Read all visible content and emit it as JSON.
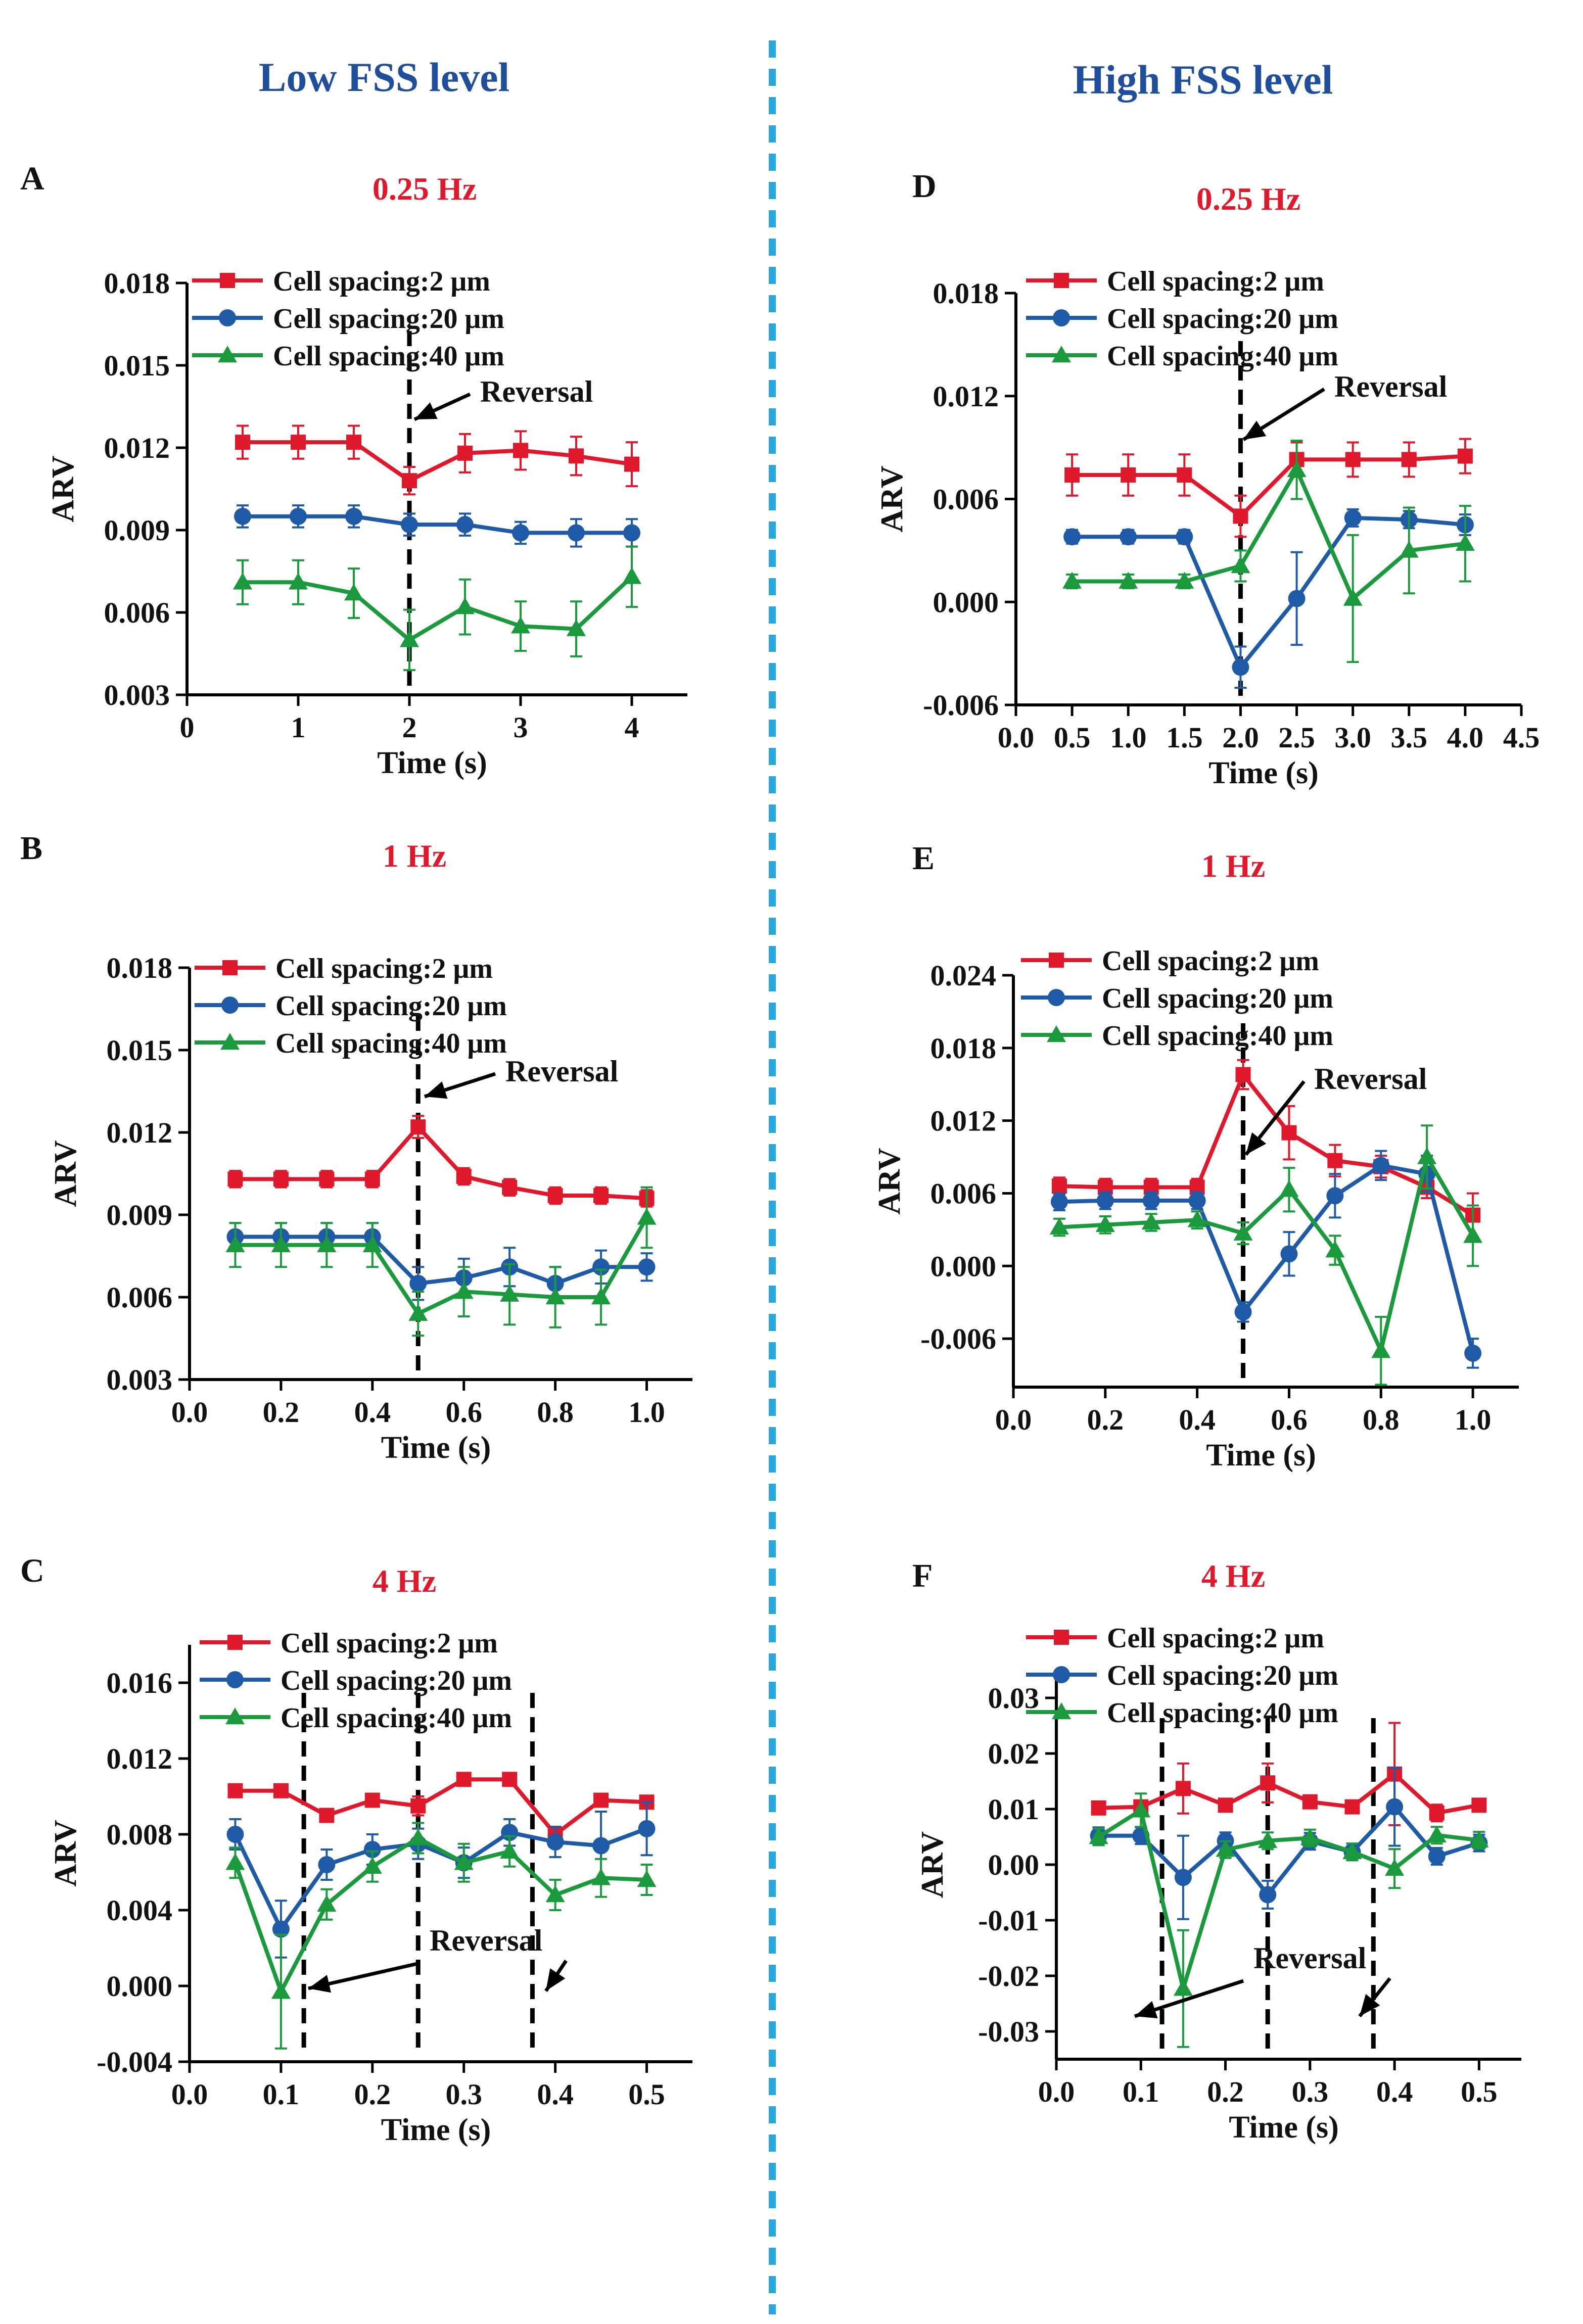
{
  "columns": {
    "left_title": "Low FSS level",
    "right_title": "High FSS level"
  },
  "colors": {
    "title_blue": "#1f4e9c",
    "freq_red": "#e0182c",
    "divider": "#29a8e0",
    "s2": "#e0182c",
    "s20": "#1f5aa6",
    "s40": "#1a9a3c"
  },
  "chart_data": [
    {
      "id": "A",
      "letter": "A",
      "type": "line",
      "title": "0.25 Hz",
      "xlabel": "Time (s)",
      "ylabel": "ARV",
      "xlim": [
        0,
        4.5
      ],
      "xticks": [
        0,
        1,
        2,
        3,
        4
      ],
      "xtick_labels": [
        "0",
        "1",
        "2",
        "3",
        "4"
      ],
      "ylim": [
        0.003,
        0.018
      ],
      "yticks": [
        0.003,
        0.006,
        0.009,
        0.012,
        0.015,
        0.018
      ],
      "ytick_labels": [
        "0.003",
        "0.006",
        "0.009",
        "0.012",
        "0.015",
        "0.018"
      ],
      "x": [
        0.5,
        1.0,
        1.5,
        2.0,
        2.5,
        3.0,
        3.5,
        4.0
      ],
      "series": [
        {
          "name": "Cell spacing:2 μm",
          "marker": "square",
          "values": [
            0.0122,
            0.0122,
            0.0122,
            0.0108,
            0.0118,
            0.0119,
            0.0117,
            0.0114
          ],
          "errors": [
            0.0006,
            0.0006,
            0.0006,
            0.0005,
            0.0007,
            0.0007,
            0.0007,
            0.0008
          ]
        },
        {
          "name": "Cell spacing:20 μm",
          "marker": "circle",
          "values": [
            0.0095,
            0.0095,
            0.0095,
            0.0092,
            0.0092,
            0.0089,
            0.0089,
            0.0089
          ],
          "errors": [
            0.0004,
            0.0004,
            0.0004,
            0.0004,
            0.0004,
            0.0004,
            0.0005,
            0.0005
          ]
        },
        {
          "name": "Cell spacing:40 μm",
          "marker": "triangle",
          "values": [
            0.0071,
            0.0071,
            0.0067,
            0.005,
            0.0062,
            0.0055,
            0.0054,
            0.0073
          ],
          "errors": [
            0.0008,
            0.0008,
            0.0009,
            0.0011,
            0.001,
            0.0009,
            0.001,
            0.0011
          ]
        }
      ],
      "reversal_lines": [
        2.0
      ],
      "reversal_label": "Reversal"
    },
    {
      "id": "B",
      "letter": "B",
      "type": "line",
      "title": "1  Hz",
      "xlabel": "Time (s)",
      "ylabel": "ARV",
      "xlim": [
        0,
        1.1
      ],
      "xticks": [
        0,
        0.2,
        0.4,
        0.6,
        0.8,
        1.0
      ],
      "xtick_labels": [
        "0.0",
        "0.2",
        "0.4",
        "0.6",
        "0.8",
        "1.0"
      ],
      "ylim": [
        0.003,
        0.018
      ],
      "yticks": [
        0.003,
        0.006,
        0.009,
        0.012,
        0.015,
        0.018
      ],
      "ytick_labels": [
        "0.003",
        "0.006",
        "0.009",
        "0.012",
        "0.015",
        "0.018"
      ],
      "x": [
        0.1,
        0.2,
        0.3,
        0.4,
        0.5,
        0.6,
        0.7,
        0.8,
        0.9,
        1.0
      ],
      "series": [
        {
          "name": "Cell spacing:2 μm",
          "marker": "square",
          "values": [
            0.0103,
            0.0103,
            0.0103,
            0.0103,
            0.0122,
            0.0104,
            0.01,
            0.0097,
            0.0097,
            0.0096
          ],
          "errors": [
            0.0003,
            0.0003,
            0.0003,
            0.0003,
            0.0004,
            0.0003,
            0.0003,
            0.0003,
            0.0003,
            0.0003
          ]
        },
        {
          "name": "Cell spacing:20 μm",
          "marker": "circle",
          "values": [
            0.0082,
            0.0082,
            0.0082,
            0.0082,
            0.0065,
            0.0067,
            0.0071,
            0.0065,
            0.0071,
            0.0071
          ],
          "errors": [
            0.0005,
            0.0005,
            0.0005,
            0.0005,
            0.0006,
            0.0007,
            0.0007,
            0.0006,
            0.0006,
            0.0005
          ]
        },
        {
          "name": "Cell spacing:40 μm",
          "marker": "triangle",
          "values": [
            0.0079,
            0.0079,
            0.0079,
            0.0079,
            0.0054,
            0.0062,
            0.0061,
            0.006,
            0.006,
            0.0089
          ],
          "errors": [
            0.0008,
            0.0008,
            0.0008,
            0.0008,
            0.0008,
            0.0009,
            0.0011,
            0.0011,
            0.001,
            0.0011
          ]
        }
      ],
      "reversal_lines": [
        0.5
      ],
      "reversal_label": "Reversal"
    },
    {
      "id": "C",
      "letter": "C",
      "type": "line",
      "title": "4 Hz",
      "xlabel": "Time (s)",
      "ylabel": "ARV",
      "xlim": [
        0,
        0.55
      ],
      "xticks": [
        0,
        0.1,
        0.2,
        0.3,
        0.4,
        0.5
      ],
      "xtick_labels": [
        "0.0",
        "0.1",
        "0.2",
        "0.3",
        "0.4",
        "0.5"
      ],
      "ylim": [
        -0.004,
        0.018
      ],
      "yticks": [
        -0.004,
        0.0,
        0.004,
        0.008,
        0.012,
        0.016
      ],
      "ytick_labels": [
        "-0.004",
        "0.000",
        "0.004",
        "0.008",
        "0.012",
        "0.016"
      ],
      "x": [
        0.05,
        0.1,
        0.15,
        0.2,
        0.25,
        0.3,
        0.35,
        0.4,
        0.45,
        0.5
      ],
      "series": [
        {
          "name": "Cell spacing:2 μm",
          "marker": "square",
          "values": [
            0.0103,
            0.0103,
            0.009,
            0.0098,
            0.0095,
            0.0109,
            0.0109,
            0.008,
            0.0098,
            0.0097
          ],
          "errors": [
            0.0003,
            0.0003,
            0.0003,
            0.0003,
            0.0005,
            0.0003,
            0.0003,
            0.0004,
            0.0003,
            0.0003
          ]
        },
        {
          "name": "Cell spacing:20 μm",
          "marker": "circle",
          "values": [
            0.008,
            0.003,
            0.0064,
            0.0072,
            0.0075,
            0.0065,
            0.0081,
            0.0076,
            0.0074,
            0.0083
          ],
          "errors": [
            0.0008,
            0.0015,
            0.0008,
            0.0008,
            0.0008,
            0.0008,
            0.0007,
            0.0008,
            0.0018,
            0.0014
          ]
        },
        {
          "name": "Cell spacing:40 μm",
          "marker": "triangle",
          "values": [
            0.0065,
            -0.0003,
            0.0043,
            0.0063,
            0.0078,
            0.0065,
            0.0071,
            0.0048,
            0.0057,
            0.0056
          ],
          "errors": [
            0.0008,
            0.003,
            0.0008,
            0.0008,
            0.0008,
            0.001,
            0.0008,
            0.0008,
            0.001,
            0.0008
          ]
        }
      ],
      "reversal_lines": [
        0.125,
        0.25,
        0.375
      ],
      "reversal_label": "Reversal"
    },
    {
      "id": "D",
      "letter": "D",
      "type": "line",
      "title": "0.25 Hz",
      "xlabel": "Time (s)",
      "ylabel": "ARV",
      "xlim": [
        0,
        4.5
      ],
      "xticks": [
        0,
        0.5,
        1.0,
        1.5,
        2.0,
        2.5,
        3.0,
        3.5,
        4.0,
        4.5
      ],
      "xtick_labels": [
        "0.0",
        "0.5",
        "1.0",
        "1.5",
        "2.0",
        "2.5",
        "3.0",
        "3.5",
        "4.0",
        "4.5"
      ],
      "ylim": [
        -0.006,
        0.018
      ],
      "yticks": [
        -0.006,
        0.0,
        0.006,
        0.012,
        0.018
      ],
      "ytick_labels": [
        "-0.006",
        "0.000",
        "0.006",
        "0.012",
        "0.018"
      ],
      "x": [
        0.5,
        1.0,
        1.5,
        2.0,
        2.5,
        3.0,
        3.5,
        4.0
      ],
      "series": [
        {
          "name": "Cell spacing:2 μm",
          "marker": "square",
          "values": [
            0.0074,
            0.0074,
            0.0074,
            0.005,
            0.0083,
            0.0083,
            0.0083,
            0.0085
          ],
          "errors": [
            0.0012,
            0.0012,
            0.0012,
            0.0012,
            0.001,
            0.001,
            0.001,
            0.001
          ]
        },
        {
          "name": "Cell spacing:20 μm",
          "marker": "circle",
          "values": [
            0.0038,
            0.0038,
            0.0038,
            -0.0038,
            0.0002,
            0.0049,
            0.0048,
            0.0045
          ],
          "errors": [
            0.0004,
            0.0004,
            0.0004,
            0.0012,
            0.0027,
            0.0005,
            0.0005,
            0.0006
          ]
        },
        {
          "name": "Cell spacing:40 μm",
          "marker": "triangle",
          "values": [
            0.0012,
            0.0012,
            0.0012,
            0.0021,
            0.0077,
            0.0002,
            0.003,
            0.0034
          ],
          "errors": [
            0.0004,
            0.0004,
            0.0004,
            0.0009,
            0.0017,
            0.0037,
            0.0025,
            0.0022
          ]
        }
      ],
      "reversal_lines": [
        2.0
      ],
      "reversal_label": "Reversal"
    },
    {
      "id": "E",
      "letter": "E",
      "type": "line",
      "title": "1  Hz",
      "xlabel": "Time (s)",
      "ylabel": "ARV",
      "xlim": [
        0,
        1.1
      ],
      "xticks": [
        0,
        0.2,
        0.4,
        0.6,
        0.8,
        1.0
      ],
      "xtick_labels": [
        "0.0",
        "0.2",
        "0.4",
        "0.6",
        "0.8",
        "1.0"
      ],
      "ylim": [
        -0.01,
        0.024
      ],
      "yticks": [
        -0.006,
        0.0,
        0.006,
        0.012,
        0.018,
        0.024
      ],
      "ytick_labels": [
        "-0.006",
        "0.000",
        "0.006",
        "0.012",
        "0.018",
        "0.024"
      ],
      "x": [
        0.1,
        0.2,
        0.3,
        0.4,
        0.5,
        0.6,
        0.7,
        0.8,
        0.9,
        1.0
      ],
      "series": [
        {
          "name": "Cell spacing:2 μm",
          "marker": "square",
          "values": [
            0.0066,
            0.0065,
            0.0065,
            0.0065,
            0.0158,
            0.011,
            0.0087,
            0.0082,
            0.0065,
            0.0042
          ],
          "errors": [
            0.0007,
            0.0007,
            0.0007,
            0.0007,
            0.0012,
            0.0022,
            0.0013,
            0.0009,
            0.0009,
            0.0018
          ]
        },
        {
          "name": "Cell spacing:20 μm",
          "marker": "circle",
          "values": [
            0.0053,
            0.0054,
            0.0054,
            0.0054,
            -0.0038,
            0.001,
            0.0058,
            0.0083,
            0.0076,
            -0.0072
          ],
          "errors": [
            0.0007,
            0.0007,
            0.0007,
            0.0007,
            0.0008,
            0.0018,
            0.0018,
            0.0012,
            0.0015,
            0.0012
          ]
        },
        {
          "name": "Cell spacing:40 μm",
          "marker": "triangle",
          "values": [
            0.0032,
            0.0034,
            0.0036,
            0.0038,
            0.0027,
            0.0063,
            0.0013,
            -0.007,
            0.009,
            0.0025
          ],
          "errors": [
            0.0007,
            0.0007,
            0.0007,
            0.0007,
            0.0009,
            0.0018,
            0.0012,
            0.0028,
            0.0026,
            0.0025
          ]
        }
      ],
      "reversal_lines": [
        0.5
      ],
      "reversal_label": "Reversal"
    },
    {
      "id": "F",
      "letter": "F",
      "type": "line",
      "title": "4 Hz",
      "xlabel": "Time (s)",
      "ylabel": "ARV",
      "xlim": [
        0,
        0.55
      ],
      "xticks": [
        0,
        0.1,
        0.2,
        0.3,
        0.4,
        0.5
      ],
      "xtick_labels": [
        "0.0",
        "0.1",
        "0.2",
        "0.3",
        "0.4",
        "0.5"
      ],
      "ylim": [
        -0.035,
        0.035
      ],
      "yticks": [
        -0.03,
        -0.02,
        -0.01,
        0.0,
        0.01,
        0.02,
        0.03
      ],
      "ytick_labels": [
        "-0.03",
        "-0.02",
        "-0.01",
        "0.00",
        "0.01",
        "0.02",
        "0.03"
      ],
      "x": [
        0.05,
        0.1,
        0.15,
        0.2,
        0.25,
        0.3,
        0.35,
        0.4,
        0.45,
        0.5
      ],
      "series": [
        {
          "name": "Cell spacing:2 μm",
          "marker": "square",
          "values": [
            0.0102,
            0.0104,
            0.0137,
            0.0107,
            0.0147,
            0.0113,
            0.0104,
            0.0163,
            0.0093,
            0.0107
          ],
          "errors": [
            0.001,
            0.001,
            0.0045,
            0.001,
            0.0035,
            0.001,
            0.001,
            0.0092,
            0.0015,
            0.001
          ]
        },
        {
          "name": "Cell spacing:20 μm",
          "marker": "circle",
          "values": [
            0.0052,
            0.0052,
            -0.0023,
            0.0043,
            -0.0054,
            0.0042,
            0.0023,
            0.0104,
            0.0015,
            0.0039
          ],
          "errors": [
            0.0015,
            0.0015,
            0.0075,
            0.0015,
            0.0025,
            0.0015,
            0.0015,
            0.007,
            0.0015,
            0.0015
          ]
        },
        {
          "name": "Cell spacing:40 μm",
          "marker": "triangle",
          "values": [
            0.005,
            0.0098,
            -0.0223,
            0.0027,
            0.0043,
            0.0048,
            0.0023,
            -0.0007,
            0.0053,
            0.0044
          ],
          "errors": [
            0.0015,
            0.003,
            0.0105,
            0.0015,
            0.0015,
            0.0015,
            0.0015,
            0.0035,
            0.0015,
            0.0015
          ]
        }
      ],
      "reversal_lines": [
        0.125,
        0.25,
        0.375
      ],
      "reversal_label": "Reversal"
    }
  ]
}
